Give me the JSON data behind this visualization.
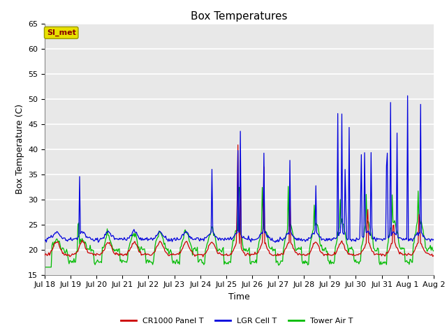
{
  "title": "Box Temperatures",
  "xlabel": "Time",
  "ylabel": "Box Temperature (C)",
  "ylim": [
    15,
    65
  ],
  "yticks": [
    15,
    20,
    25,
    30,
    35,
    40,
    45,
    50,
    55,
    60,
    65
  ],
  "plot_bg_color": "#e8e8e8",
  "fig_bg_color": "#ffffff",
  "grid_color": "#ffffff",
  "line_colors": {
    "panel": "#cc0000",
    "lgr": "#0000dd",
    "tower": "#00bb00"
  },
  "legend_labels": [
    "CR1000 Panel T",
    "LGR Cell T",
    "Tower Air T"
  ],
  "watermark_text": "SI_met",
  "watermark_bg": "#e8e000",
  "watermark_fg": "#880000",
  "watermark_edge": "#999900",
  "x_tick_labels": [
    "Jul 18",
    "Jul 19",
    "Jul 20",
    "Jul 21",
    "Jul 22",
    "Jul 23",
    "Jul 24",
    "Jul 25",
    "Jul 26",
    "Jul 27",
    "Jul 28",
    "Jul 29",
    "Jul 30",
    "Jul 31",
    "Aug 1",
    "Aug 2"
  ],
  "title_fontsize": 11,
  "axis_fontsize": 9,
  "tick_fontsize": 8,
  "legend_fontsize": 8
}
